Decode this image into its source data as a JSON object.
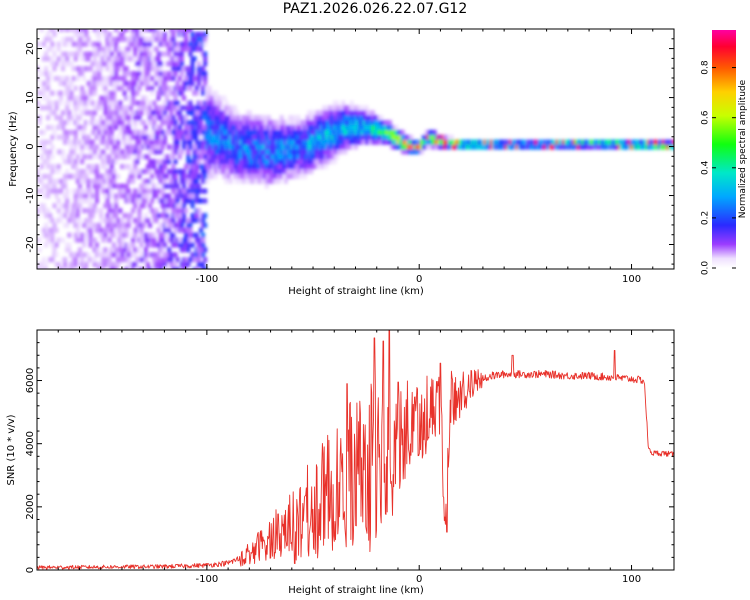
{
  "title": "PAZ1.2026.026.22.07.G12",
  "chart_data": [
    {
      "type": "heatmap",
      "title": "PAZ1.2026.026.22.07.G12",
      "xlabel": "Height of straight line (km)",
      "ylabel": "Frequency (Hz)",
      "xlim": [
        -180,
        120
      ],
      "ylim": [
        -25,
        24
      ],
      "x_ticks": [
        -100,
        0,
        100
      ],
      "x_tick_labels": [
        "-100",
        "0",
        "100"
      ],
      "y_ticks": [
        -20,
        -10,
        0,
        10,
        20
      ],
      "y_tick_labels": [
        "-20",
        "-10",
        "0",
        "10",
        "20"
      ],
      "colorbar": {
        "label": "Normalized spectral amplitude",
        "range": [
          0,
          0.95
        ],
        "ticks": [
          0,
          0.2,
          0.4,
          0.6,
          0.8
        ],
        "tick_labels": [
          "0.0",
          "0.2",
          "0.4",
          "0.6",
          "0.8"
        ],
        "colormap": "rainbow (white-violet-blue-cyan-green-yellow-orange-red-magenta)"
      },
      "description_points": {
        "ridge_x": [
          -180,
          -150,
          -120,
          -100,
          -85,
          -70,
          -55,
          -45,
          -35,
          -25,
          -15,
          -8,
          -3,
          0,
          5,
          10,
          20,
          40,
          60,
          80,
          100,
          120
        ],
        "ridge_freq": [
          0,
          1,
          2,
          3,
          0,
          -1,
          0,
          2,
          4,
          4,
          3,
          1,
          0,
          0,
          2,
          1,
          0.5,
          0.5,
          0.5,
          0.7,
          0.5,
          0.3
        ],
        "ridge_spread": [
          24,
          24,
          22,
          8,
          6,
          6,
          5,
          5,
          4,
          3,
          2,
          1.5,
          1.2,
          1.0,
          1.5,
          1.0,
          0.8,
          0.8,
          0.8,
          0.8,
          0.8,
          0.8
        ],
        "ridge_amplitude": [
          0.05,
          0.08,
          0.12,
          0.22,
          0.25,
          0.25,
          0.25,
          0.3,
          0.32,
          0.35,
          0.45,
          0.75,
          0.8,
          0.7,
          0.45,
          0.7,
          0.55,
          0.4,
          0.4,
          0.5,
          0.55,
          0.6
        ]
      }
    },
    {
      "type": "line",
      "xlabel": "Height of straight line (km)",
      "ylabel": "SNR (10 * v/v)",
      "xlim": [
        -180,
        120
      ],
      "ylim": [
        0,
        7600
      ],
      "x_ticks": [
        -100,
        0,
        100
      ],
      "x_tick_labels": [
        "-100",
        "0",
        "100"
      ],
      "y_ticks": [
        0,
        2000,
        4000,
        6000
      ],
      "y_tick_labels": [
        "0",
        "2000",
        "4000",
        "6000"
      ],
      "color": "#e8312a",
      "series": [
        {
          "name": "SNR",
          "x": [
            -180,
            -160,
            -140,
            -120,
            -100,
            -90,
            -85,
            -80,
            -75,
            -70,
            -65,
            -60,
            -55,
            -50,
            -45,
            -40,
            -35,
            -30,
            -25,
            -20,
            -15,
            -10,
            -5,
            0,
            5,
            10,
            12,
            15,
            20,
            25,
            30,
            35,
            40,
            50,
            60,
            70,
            80,
            90,
            100,
            106,
            108,
            110,
            115,
            120
          ],
          "values": [
            80,
            90,
            100,
            110,
            150,
            220,
            350,
            550,
            800,
            1000,
            1250,
            1500,
            1800,
            2100,
            2400,
            2700,
            3000,
            3300,
            3500,
            3700,
            3900,
            4200,
            4600,
            4900,
            5200,
            5400,
            1500,
            5500,
            5700,
            5950,
            6100,
            6150,
            6200,
            6200,
            6200,
            6150,
            6150,
            6100,
            6050,
            6000,
            3800,
            3700,
            3700,
            3650
          ],
          "noise_amp": [
            100,
            100,
            100,
            110,
            120,
            150,
            200,
            350,
            500,
            700,
            900,
            1100,
            1300,
            1500,
            1700,
            1900,
            2100,
            2300,
            2500,
            2500,
            2200,
            1800,
            1500,
            1300,
            1100,
            1000,
            500,
            900,
            700,
            400,
            250,
            220,
            200,
            200,
            200,
            200,
            200,
            200,
            200,
            200,
            150,
            150,
            150,
            150
          ],
          "spikes": [
            {
              "x": -21,
              "y": 7350
            },
            {
              "x": -14,
              "y": 7600
            },
            {
              "x": -17,
              "y": 7250
            },
            {
              "x": -34,
              "y": 5900
            },
            {
              "x": -10,
              "y": 5950
            },
            {
              "x": 10,
              "y": 6550
            },
            {
              "x": 13,
              "y": 1200
            },
            {
              "x": 44,
              "y": 6800
            },
            {
              "x": 92,
              "y": 6950
            }
          ]
        }
      ]
    }
  ]
}
